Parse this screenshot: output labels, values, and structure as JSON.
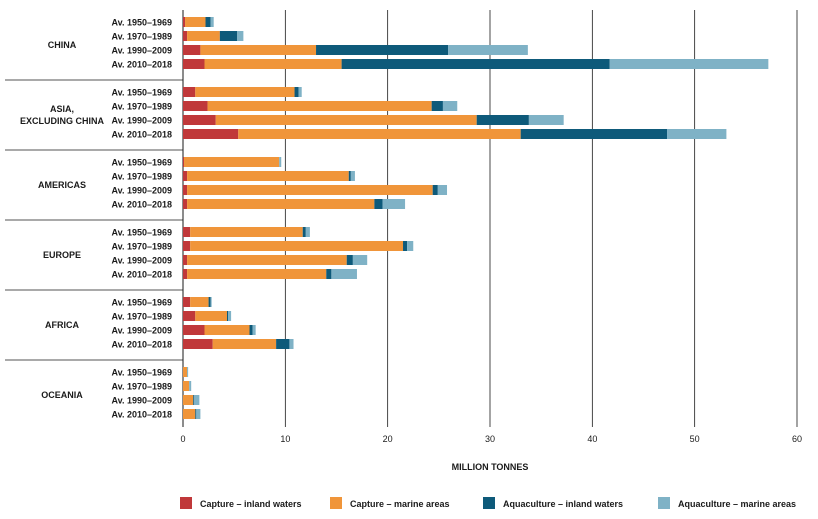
{
  "chart_data": {
    "type": "bar",
    "orientation": "horizontal",
    "stacked": true,
    "xlabel": "MILLION TONNES",
    "xlim": [
      0,
      60
    ],
    "xticks": [
      0,
      10,
      20,
      30,
      40,
      50,
      60
    ],
    "grid": true,
    "legend_position": "bottom",
    "series": [
      {
        "name": "Capture – inland waters",
        "color": "#c0383a"
      },
      {
        "name": "Capture – marine areas",
        "color": "#f0953a"
      },
      {
        "name": "Aquaculture – inland waters",
        "color": "#0e5a7a"
      },
      {
        "name": "Aquaculture – marine areas",
        "color": "#7fb2c6"
      }
    ],
    "groups": [
      {
        "region": "CHINA",
        "bars": [
          {
            "period": "Av. 1950–1969",
            "values": [
              0.2,
              2.0,
              0.5,
              0.3
            ]
          },
          {
            "period": "Av. 1970–1989",
            "values": [
              0.4,
              3.2,
              1.7,
              0.6
            ]
          },
          {
            "period": "Av. 1990–2009",
            "values": [
              1.7,
              11.3,
              12.9,
              7.8
            ]
          },
          {
            "period": "Av. 2010–2018",
            "values": [
              2.1,
              13.4,
              26.2,
              15.5
            ]
          }
        ]
      },
      {
        "region": "ASIA, EXCLUDING CHINA",
        "bars": [
          {
            "period": "Av. 1950–1969",
            "values": [
              1.2,
              9.7,
              0.4,
              0.3
            ]
          },
          {
            "period": "Av. 1970–1989",
            "values": [
              2.4,
              21.9,
              1.1,
              1.4
            ]
          },
          {
            "period": "Av. 1990–2009",
            "values": [
              3.2,
              25.5,
              5.1,
              3.4
            ]
          },
          {
            "period": "Av. 2010–2018",
            "values": [
              5.4,
              27.6,
              14.3,
              5.8
            ]
          }
        ]
      },
      {
        "region": "AMERICAS",
        "bars": [
          {
            "period": "Av. 1950–1969",
            "values": [
              0.1,
              9.3,
              0.0,
              0.2
            ]
          },
          {
            "period": "Av. 1970–1989",
            "values": [
              0.4,
              15.8,
              0.2,
              0.4
            ]
          },
          {
            "period": "Av. 1990–2009",
            "values": [
              0.4,
              24.0,
              0.5,
              0.9
            ]
          },
          {
            "period": "Av. 2010–2018",
            "values": [
              0.4,
              18.3,
              0.8,
              2.2
            ]
          }
        ]
      },
      {
        "region": "EUROPE",
        "bars": [
          {
            "period": "Av. 1950–1969",
            "values": [
              0.7,
              11.0,
              0.3,
              0.4
            ]
          },
          {
            "period": "Av. 1970–1989",
            "values": [
              0.7,
              20.8,
              0.4,
              0.6
            ]
          },
          {
            "period": "Av. 1990–2009",
            "values": [
              0.4,
              15.6,
              0.6,
              1.4
            ]
          },
          {
            "period": "Av. 2010–2018",
            "values": [
              0.4,
              13.6,
              0.5,
              2.5
            ]
          }
        ]
      },
      {
        "region": "AFRICA",
        "bars": [
          {
            "period": "Av. 1950–1969",
            "values": [
              0.7,
              1.8,
              0.2,
              0.1
            ]
          },
          {
            "period": "Av. 1970–1989",
            "values": [
              1.2,
              3.1,
              0.1,
              0.3
            ]
          },
          {
            "period": "Av. 1990–2009",
            "values": [
              2.1,
              4.4,
              0.3,
              0.3
            ]
          },
          {
            "period": "Av. 2010–2018",
            "values": [
              2.9,
              6.2,
              1.3,
              0.4
            ]
          }
        ]
      },
      {
        "region": "OCEANIA",
        "bars": [
          {
            "period": "Av. 1950–1969",
            "values": [
              0.0,
              0.4,
              0.0,
              0.1
            ]
          },
          {
            "period": "Av. 1970–1989",
            "values": [
              0.0,
              0.6,
              0.0,
              0.2
            ]
          },
          {
            "period": "Av. 1990–2009",
            "values": [
              0.0,
              1.0,
              0.1,
              0.5
            ]
          },
          {
            "period": "Av. 2010–2018",
            "values": [
              0.0,
              1.2,
              0.1,
              0.4
            ]
          }
        ]
      }
    ]
  }
}
